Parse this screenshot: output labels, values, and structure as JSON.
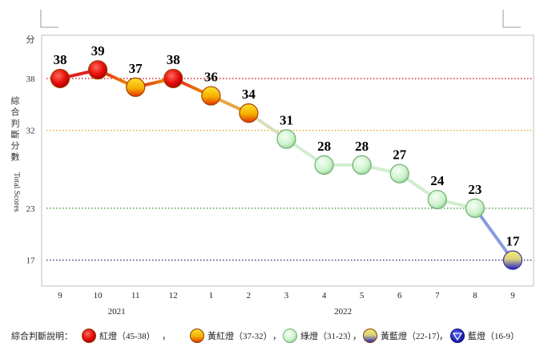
{
  "chart_data": {
    "type": "line",
    "y_unit_label": "分",
    "ylabel_cn": "綜合判斷分數",
    "ylabel_en": "Total Scores",
    "ylim": [
      14,
      43
    ],
    "ytick_values": [
      17,
      23,
      32,
      38
    ],
    "ytick_labels": [
      "17",
      "23",
      "32",
      "38"
    ],
    "threshold_lines": [
      {
        "value": 38,
        "color": "#c00000"
      },
      {
        "value": 32,
        "color": "#e0a000"
      },
      {
        "value": 23,
        "color": "#2e8b2e"
      },
      {
        "value": 17,
        "color": "#1f1f8f"
      }
    ],
    "categories": [
      "9",
      "10",
      "11",
      "12",
      "1",
      "2",
      "3",
      "4",
      "5",
      "6",
      "7",
      "8",
      "9"
    ],
    "year_labels": [
      {
        "text": "2021",
        "category_index": 1.5
      },
      {
        "text": "2022",
        "category_index": 7.5
      }
    ],
    "values": [
      38,
      39,
      37,
      38,
      36,
      34,
      31,
      28,
      28,
      27,
      24,
      23,
      17
    ],
    "signals": [
      "red",
      "red",
      "yellow-red",
      "red",
      "yellow-red",
      "yellow-red",
      "green",
      "green",
      "green",
      "green",
      "green",
      "green",
      "yellow-blue"
    ],
    "signal_colors": {
      "red": "#e81010",
      "yellow-red": "#f2a200",
      "green": "#c8f0c8",
      "yellow-blue": "#6a6fd0",
      "blue": "#1a1ab8"
    },
    "legend": {
      "prefix": "綜合判斷說明：",
      "separator": "，",
      "items": [
        {
          "key": "red",
          "label": "紅燈（45-38）"
        },
        {
          "key": "yellow-red",
          "label": "黃紅燈（37-32）"
        },
        {
          "key": "green",
          "label": "綠燈（31-23）"
        },
        {
          "key": "yellow-blue",
          "label": "黃藍燈（22-17）"
        },
        {
          "key": "blue",
          "label": "藍燈（16-9）"
        }
      ]
    }
  }
}
